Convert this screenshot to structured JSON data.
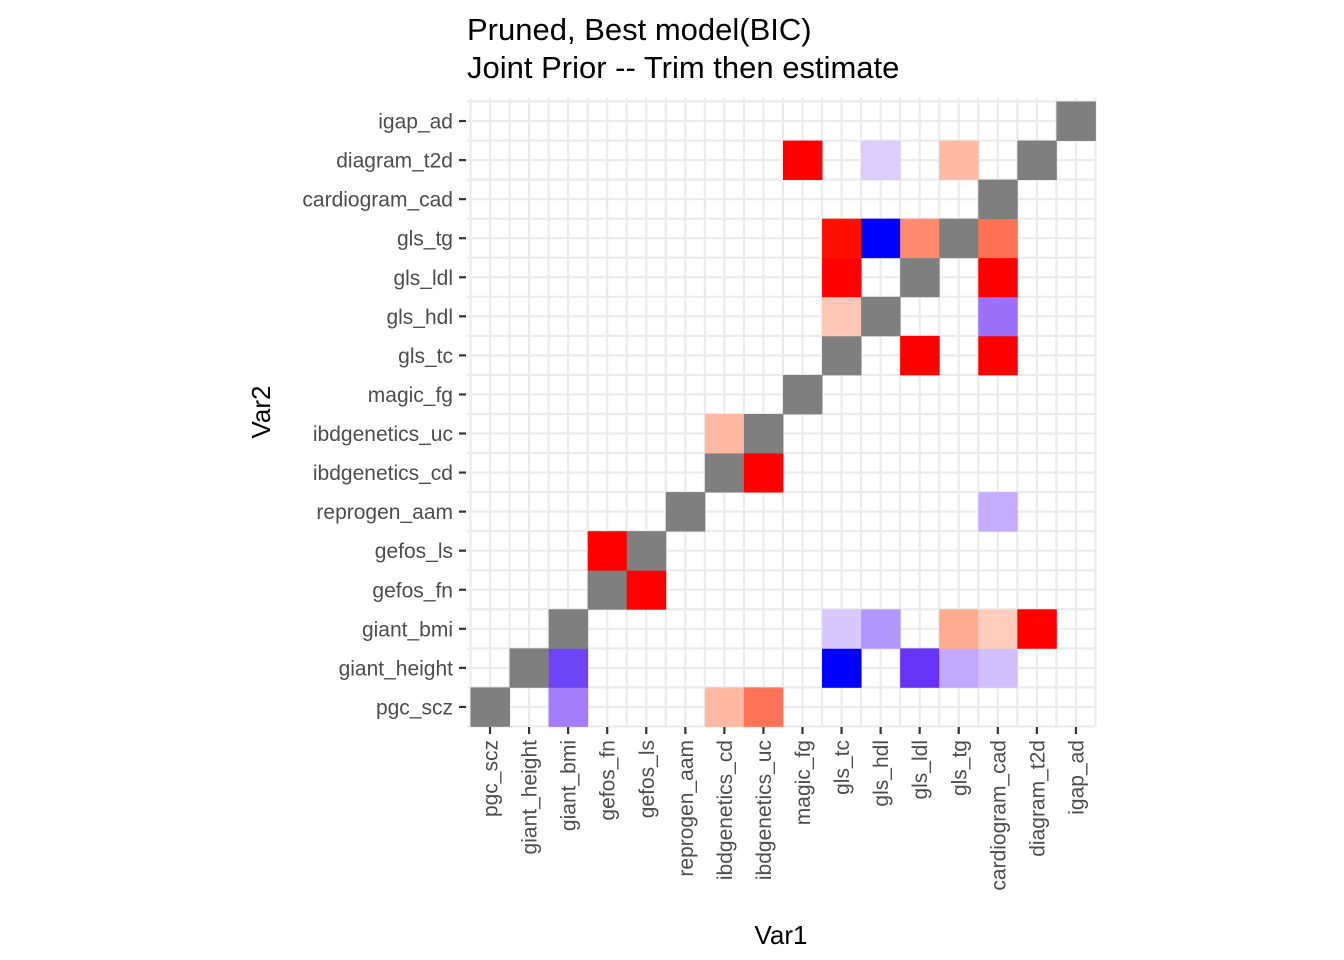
{
  "chart_data": {
    "type": "heatmap",
    "title": [
      "Pruned, Best model(BIC)",
      "Joint Prior -- Trim then estimate"
    ],
    "xlabel": "Var1",
    "ylabel": "Var2",
    "variables": [
      "pgc_scz",
      "giant_height",
      "giant_bmi",
      "gefos_fn",
      "gefos_ls",
      "reprogen_aam",
      "ibdgenetics_cd",
      "ibdgenetics_uc",
      "magic_fg",
      "gls_tc",
      "gls_hdl",
      "gls_ldl",
      "gls_tg",
      "cardiogram_cad",
      "diagram_t2d",
      "igap_ad"
    ],
    "diagonal_color": "#7f7f7f",
    "cells": [
      {
        "x": "pgc_scz",
        "y": "pgc_scz",
        "color": "#7f7f7f"
      },
      {
        "x": "giant_bmi",
        "y": "pgc_scz",
        "color": "#a37bfb"
      },
      {
        "x": "ibdgenetics_cd",
        "y": "pgc_scz",
        "color": "#ffb9a3"
      },
      {
        "x": "ibdgenetics_uc",
        "y": "pgc_scz",
        "color": "#ff7359"
      },
      {
        "x": "giant_height",
        "y": "giant_height",
        "color": "#7f7f7f"
      },
      {
        "x": "giant_bmi",
        "y": "giant_height",
        "color": "#6e44f9"
      },
      {
        "x": "gls_tc",
        "y": "giant_height",
        "color": "#0000ff"
      },
      {
        "x": "gls_ldl",
        "y": "giant_height",
        "color": "#6634f7"
      },
      {
        "x": "gls_tg",
        "y": "giant_height",
        "color": "#c2a8fc"
      },
      {
        "x": "cardiogram_cad",
        "y": "giant_height",
        "color": "#d1c0fd"
      },
      {
        "x": "giant_bmi",
        "y": "giant_bmi",
        "color": "#7f7f7f"
      },
      {
        "x": "gls_tc",
        "y": "giant_bmi",
        "color": "#d8c8fd"
      },
      {
        "x": "gls_hdl",
        "y": "giant_bmi",
        "color": "#b197fc"
      },
      {
        "x": "gls_tg",
        "y": "giant_bmi",
        "color": "#ffab92"
      },
      {
        "x": "cardiogram_cad",
        "y": "giant_bmi",
        "color": "#ffcdbc"
      },
      {
        "x": "diagram_t2d",
        "y": "giant_bmi",
        "color": "#ff0000"
      },
      {
        "x": "gefos_fn",
        "y": "gefos_fn",
        "color": "#7f7f7f"
      },
      {
        "x": "gefos_ls",
        "y": "gefos_fn",
        "color": "#ff0000"
      },
      {
        "x": "gefos_fn",
        "y": "gefos_ls",
        "color": "#ff0000"
      },
      {
        "x": "gefos_ls",
        "y": "gefos_ls",
        "color": "#7f7f7f"
      },
      {
        "x": "reprogen_aam",
        "y": "reprogen_aam",
        "color": "#7f7f7f"
      },
      {
        "x": "cardiogram_cad",
        "y": "reprogen_aam",
        "color": "#c5adfd"
      },
      {
        "x": "ibdgenetics_cd",
        "y": "ibdgenetics_cd",
        "color": "#7f7f7f"
      },
      {
        "x": "ibdgenetics_uc",
        "y": "ibdgenetics_cd",
        "color": "#ff0000"
      },
      {
        "x": "ibdgenetics_cd",
        "y": "ibdgenetics_uc",
        "color": "#ffb8a2"
      },
      {
        "x": "ibdgenetics_uc",
        "y": "ibdgenetics_uc",
        "color": "#7f7f7f"
      },
      {
        "x": "magic_fg",
        "y": "magic_fg",
        "color": "#7f7f7f"
      },
      {
        "x": "gls_tc",
        "y": "gls_tc",
        "color": "#7f7f7f"
      },
      {
        "x": "gls_ldl",
        "y": "gls_tc",
        "color": "#ff0000"
      },
      {
        "x": "cardiogram_cad",
        "y": "gls_tc",
        "color": "#ff0000"
      },
      {
        "x": "gls_tc",
        "y": "gls_hdl",
        "color": "#ffc8b6"
      },
      {
        "x": "gls_hdl",
        "y": "gls_hdl",
        "color": "#7f7f7f"
      },
      {
        "x": "cardiogram_cad",
        "y": "gls_hdl",
        "color": "#9c70fb"
      },
      {
        "x": "gls_tc",
        "y": "gls_ldl",
        "color": "#ff0000"
      },
      {
        "x": "gls_ldl",
        "y": "gls_ldl",
        "color": "#7f7f7f"
      },
      {
        "x": "cardiogram_cad",
        "y": "gls_ldl",
        "color": "#ff0000"
      },
      {
        "x": "gls_tc",
        "y": "gls_tg",
        "color": "#ff0f00"
      },
      {
        "x": "gls_hdl",
        "y": "gls_tg",
        "color": "#0000ff"
      },
      {
        "x": "gls_ldl",
        "y": "gls_tg",
        "color": "#ff8a6e"
      },
      {
        "x": "gls_tg",
        "y": "gls_tg",
        "color": "#7f7f7f"
      },
      {
        "x": "cardiogram_cad",
        "y": "gls_tg",
        "color": "#ff7251"
      },
      {
        "x": "cardiogram_cad",
        "y": "cardiogram_cad",
        "color": "#7f7f7f"
      },
      {
        "x": "magic_fg",
        "y": "diagram_t2d",
        "color": "#ff0000"
      },
      {
        "x": "gls_hdl",
        "y": "diagram_t2d",
        "color": "#dccdfd"
      },
      {
        "x": "gls_tg",
        "y": "diagram_t2d",
        "color": "#ffbba5"
      },
      {
        "x": "diagram_t2d",
        "y": "diagram_t2d",
        "color": "#7f7f7f"
      },
      {
        "x": "igap_ad",
        "y": "igap_ad",
        "color": "#7f7f7f"
      }
    ]
  }
}
